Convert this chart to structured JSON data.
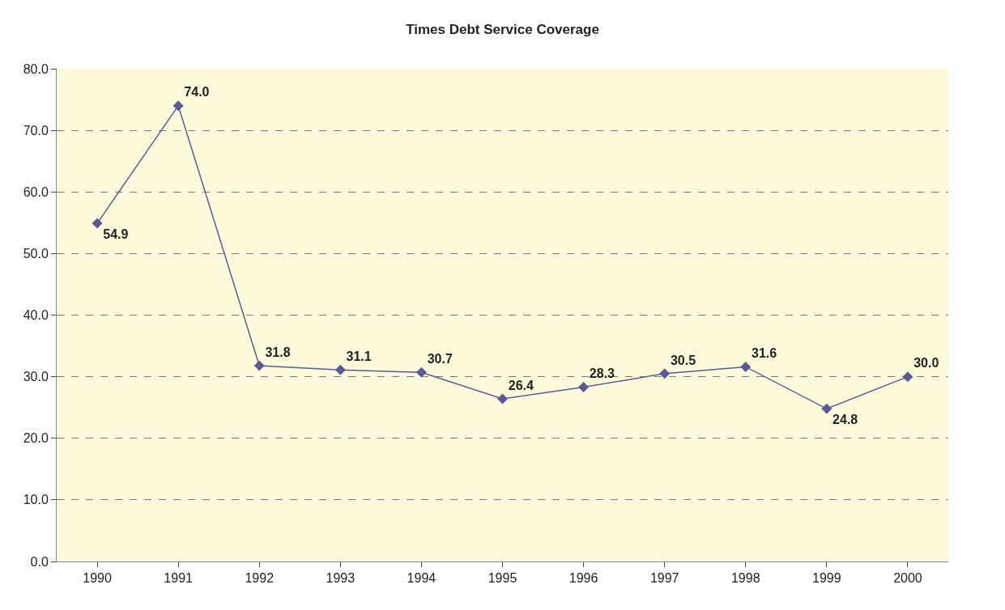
{
  "chart_data": {
    "type": "line",
    "title": "Times Debt Service Coverage",
    "categories": [
      "1990",
      "1991",
      "1992",
      "1993",
      "1994",
      "1995",
      "1996",
      "1997",
      "1998",
      "1999",
      "2000"
    ],
    "series": [
      {
        "color": "#5b5b94",
        "values": [
          54.9,
          74.0,
          31.8,
          31.1,
          30.7,
          26.4,
          28.3,
          30.5,
          31.6,
          24.8,
          30.0
        ],
        "value_labels": [
          "54.9",
          "74.0",
          "31.8",
          "31.1",
          "30.7",
          "26.4",
          "28.3",
          "30.5",
          "31.6",
          "24.8",
          "30.0"
        ]
      }
    ],
    "ylim": [
      0,
      80
    ],
    "yticks": [
      {
        "value": 0,
        "label": "0.0"
      },
      {
        "value": 10,
        "label": "10.0"
      },
      {
        "value": 20,
        "label": "20.0"
      },
      {
        "value": 30,
        "label": "30.0"
      },
      {
        "value": 40,
        "label": "40.0"
      },
      {
        "value": 50,
        "label": "50.0"
      },
      {
        "value": 60,
        "label": "60.0"
      },
      {
        "value": 70,
        "label": "70.0"
      },
      {
        "value": 80,
        "label": "80.0"
      }
    ],
    "grid": "y",
    "marker": "diamond",
    "line_style": "solid"
  }
}
